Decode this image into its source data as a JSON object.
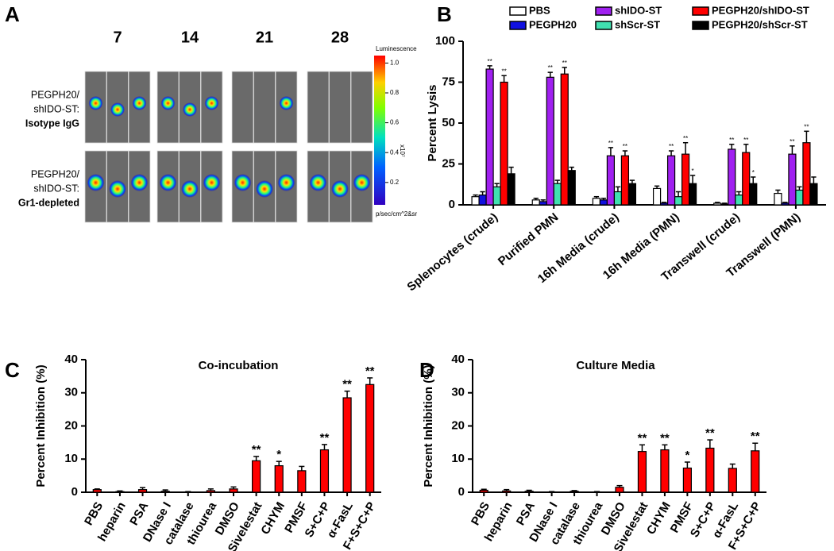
{
  "panel_a": {
    "label": "A",
    "days": [
      "7",
      "14",
      "21",
      "28"
    ],
    "rows": [
      {
        "lines": [
          "PEGPH20/",
          "shIDO-ST:",
          "Isotype IgG"
        ]
      },
      {
        "lines": [
          "PEGPH20/",
          "shIDO-ST:",
          "Gr1-depleted"
        ]
      }
    ],
    "colorbar": {
      "title": "Luminescence",
      "unit": "p/sec/cm^2&sr",
      "scale": "x10⁷",
      "ticks": [
        {
          "value": 1.0,
          "label": "1.0"
        },
        {
          "value": 0.8,
          "label": "0.8"
        },
        {
          "value": 0.6,
          "label": "0.6"
        },
        {
          "value": 0.4,
          "label": "0.4"
        },
        {
          "value": 0.2,
          "label": "0.2"
        }
      ],
      "lim": [
        0.05,
        1.05
      ]
    }
  },
  "chart_data": [
    {
      "type": "bar",
      "panel_label": "B",
      "ylabel": "Percent Lysis",
      "ylim": [
        0,
        100
      ],
      "yticks": [
        0,
        25,
        50,
        75,
        100
      ],
      "legend": "top",
      "categories": [
        "Splenocytes (crude)",
        "Purified PMN",
        "16h Media (crude)",
        "16h Media (PMN)",
        "Transwell (crude)",
        "Transwell (PMN)"
      ],
      "series": [
        {
          "name": "PBS",
          "color": "#ffffff",
          "values": [
            5,
            3,
            4,
            10,
            1,
            7
          ],
          "errors": [
            1,
            1,
            1,
            1.5,
            0.5,
            2
          ]
        },
        {
          "name": "PEGPH20",
          "color": "#1010e0",
          "values": [
            6,
            2,
            3,
            1,
            0.5,
            1
          ],
          "errors": [
            2,
            1,
            1,
            0.5,
            0.5,
            0.5
          ]
        },
        {
          "name": "shIDO-ST",
          "color": "#a020f0",
          "values": [
            83,
            78,
            30,
            30,
            34,
            31
          ],
          "errors": [
            2,
            3,
            5,
            3,
            3,
            5
          ],
          "annotations": [
            "**",
            "**",
            "**",
            "**",
            "**",
            "**"
          ]
        },
        {
          "name": "shScr-ST",
          "color": "#40e0b0",
          "values": [
            11,
            13,
            8,
            5,
            6,
            9
          ],
          "errors": [
            2,
            2,
            3,
            3,
            2,
            2
          ]
        },
        {
          "name": "PEGPH20/shIDO-ST",
          "color": "#ff0000",
          "values": [
            75,
            80,
            30,
            31,
            32,
            38
          ],
          "errors": [
            4,
            4,
            3,
            7,
            5,
            7
          ],
          "annotations": [
            "**",
            "**",
            "**",
            "**",
            "**",
            "**"
          ]
        },
        {
          "name": "PEGPH20/shScr-ST",
          "color": "#000000",
          "values": [
            19,
            21,
            13,
            13,
            13,
            13
          ],
          "errors": [
            4,
            2,
            2,
            5,
            4,
            4
          ],
          "annotations": [
            null,
            null,
            null,
            "*",
            "*",
            null
          ]
        }
      ]
    },
    {
      "type": "bar",
      "panel_label": "C",
      "title": "Co-incubation",
      "ylabel": "Percent Inhibition (%)",
      "ylim": [
        0,
        40
      ],
      "yticks": [
        0,
        10,
        20,
        30,
        40
      ],
      "color": "#ff0000",
      "categories": [
        "PBS",
        "heparin",
        "PSA",
        "DNase I",
        "catalase",
        "thiourea",
        "DMSO",
        "Sivelestat",
        "CHYM",
        "PMSF",
        "S+C+P",
        "α-FasL",
        "F+S+C+P"
      ],
      "values": [
        0.8,
        0.2,
        0.8,
        0.3,
        0.1,
        0.5,
        1.0,
        9.5,
        8,
        6.5,
        12.8,
        28.5,
        32.5
      ],
      "errors": [
        0.2,
        0.2,
        0.6,
        0.4,
        0.1,
        0.5,
        0.6,
        1.3,
        1.3,
        1.3,
        1.6,
        2,
        2
      ],
      "annotations": [
        null,
        null,
        null,
        null,
        null,
        null,
        null,
        "**",
        "*",
        null,
        "**",
        "**",
        "**"
      ]
    },
    {
      "type": "bar",
      "panel_label": "D",
      "title": "Culture Media",
      "ylabel": "Percent Inhibition (%)",
      "ylim": [
        0,
        40
      ],
      "yticks": [
        0,
        10,
        20,
        30,
        40
      ],
      "color": "#ff0000",
      "categories": [
        "PBS",
        "heparin",
        "PSA",
        "DNase I",
        "catalase",
        "thiourea",
        "DMSO",
        "Sivelestat",
        "CHYM",
        "PMSF",
        "S+C+P",
        "α-FasL",
        "F+S+C+P"
      ],
      "values": [
        0.6,
        0.4,
        0.3,
        0.1,
        0.3,
        0.1,
        1.5,
        12.3,
        12.8,
        7.3,
        13.3,
        7.2,
        12.5
      ],
      "errors": [
        0.3,
        0.4,
        0.3,
        0.1,
        0.2,
        0.1,
        0.5,
        2,
        1.5,
        1.8,
        2.5,
        1.3,
        2.3
      ],
      "annotations": [
        null,
        null,
        null,
        null,
        null,
        null,
        null,
        "**",
        "**",
        "*",
        "**",
        null,
        "**"
      ]
    }
  ]
}
